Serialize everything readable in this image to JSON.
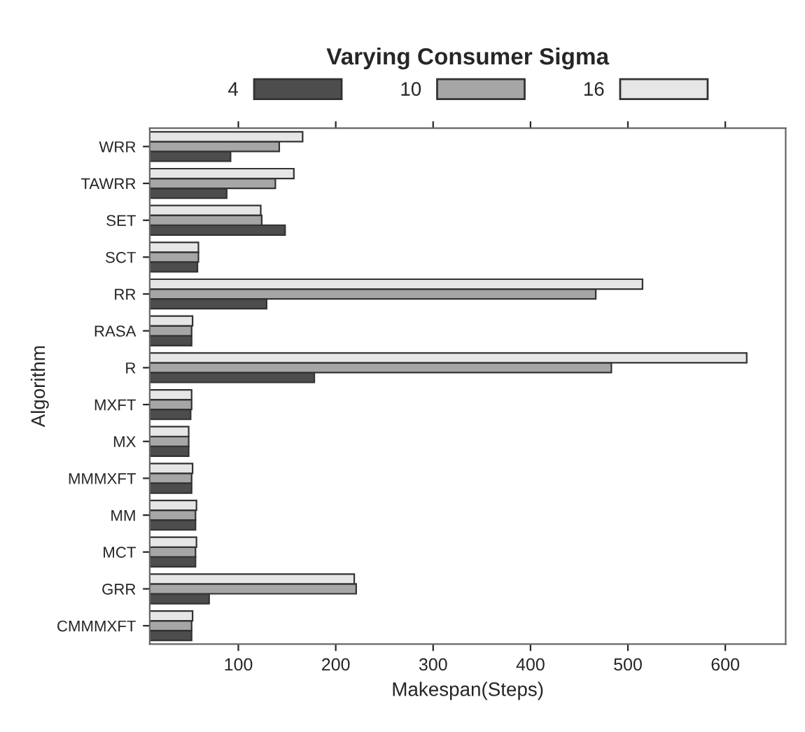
{
  "chart_data": {
    "type": "bar",
    "orientation": "horizontal",
    "legend_title": "Varying Consumer Sigma",
    "xlabel": "Makespan(Steps)",
    "ylabel": "Algorithm",
    "categories": [
      "WRR",
      "TAWRR",
      "SET",
      "SCT",
      "RR",
      "RASA",
      "R",
      "MXFT",
      "MX",
      "MMMXFT",
      "MM",
      "MCT",
      "GRR",
      "CMMMXFT"
    ],
    "series": [
      {
        "name": "4",
        "color": "#4d4d4d",
        "values": [
          92,
          88,
          148,
          58,
          129,
          52,
          178,
          51,
          49,
          52,
          56,
          56,
          70,
          52
        ]
      },
      {
        "name": "10",
        "color": "#a6a6a6",
        "values": [
          142,
          138,
          124,
          59,
          467,
          52,
          483,
          52,
          49,
          52,
          56,
          56,
          221,
          52
        ]
      },
      {
        "name": "16",
        "color": "#e6e6e6",
        "values": [
          166,
          157,
          123,
          59,
          515,
          53,
          622,
          52,
          49,
          53,
          57,
          57,
          219,
          53
        ]
      }
    ],
    "xlim": [
      9,
      662
    ],
    "xticks": [
      100,
      200,
      300,
      400,
      500,
      600
    ],
    "grid": false,
    "legend": "top"
  }
}
